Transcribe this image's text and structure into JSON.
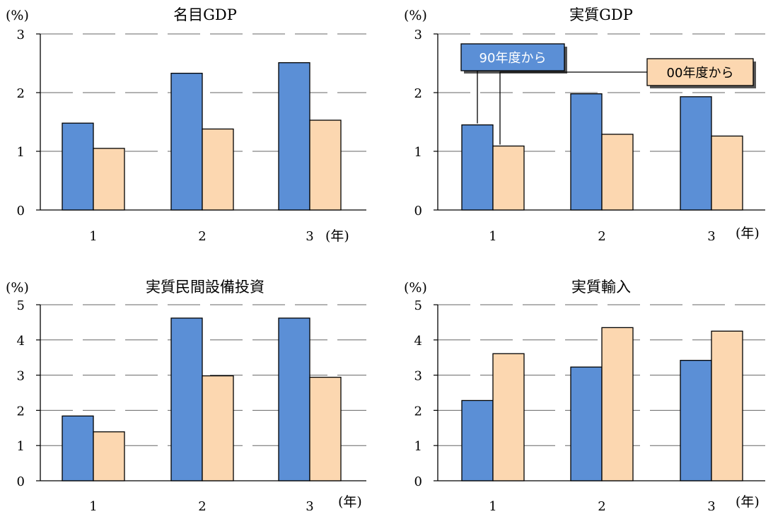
{
  "colors": {
    "series_a": "#5b8fd6",
    "series_b": "#fcd7b0",
    "bar_stroke": "#000000",
    "grid": "#666666"
  },
  "legend": {
    "series_a_label": "90年度から",
    "series_b_label": "00年度から"
  },
  "chart_data": [
    {
      "type": "bar",
      "title": "名目GDP",
      "ylabel": "(%)",
      "xlabel": "(年)",
      "categories": [
        "1",
        "2",
        "3"
      ],
      "ylim": [
        0,
        3
      ],
      "yticks": [
        0,
        1,
        2,
        3
      ],
      "series": [
        {
          "name": "90年度から",
          "values": [
            1.48,
            2.33,
            2.51
          ]
        },
        {
          "name": "00年度から",
          "values": [
            1.05,
            1.38,
            1.53
          ]
        }
      ],
      "legend": false
    },
    {
      "type": "bar",
      "title": "実質GDP",
      "ylabel": "(%)",
      "xlabel": "(年)",
      "categories": [
        "1",
        "2",
        "3"
      ],
      "ylim": [
        0,
        3
      ],
      "yticks": [
        0,
        1,
        2,
        3
      ],
      "series": [
        {
          "name": "90年度から",
          "values": [
            1.45,
            1.98,
            1.93
          ]
        },
        {
          "name": "00年度から",
          "values": [
            1.09,
            1.29,
            1.26
          ]
        }
      ],
      "legend": true
    },
    {
      "type": "bar",
      "title": "実質民間設備投資",
      "ylabel": "(%)",
      "xlabel": "(年)",
      "categories": [
        "1",
        "2",
        "3"
      ],
      "ylim": [
        0,
        5
      ],
      "yticks": [
        0,
        1,
        2,
        3,
        4,
        5
      ],
      "series": [
        {
          "name": "90年度から",
          "values": [
            1.84,
            4.62,
            4.62
          ]
        },
        {
          "name": "00年度から",
          "values": [
            1.39,
            2.98,
            2.94
          ]
        }
      ],
      "legend": false
    },
    {
      "type": "bar",
      "title": "実質輸入",
      "ylabel": "(%)",
      "xlabel": "(年)",
      "categories": [
        "1",
        "2",
        "3"
      ],
      "ylim": [
        0,
        5
      ],
      "yticks": [
        0,
        1,
        2,
        3,
        4,
        5
      ],
      "series": [
        {
          "name": "90年度から",
          "values": [
            2.28,
            3.23,
            3.42
          ]
        },
        {
          "name": "00年度から",
          "values": [
            3.61,
            4.35,
            4.25
          ]
        }
      ],
      "legend": false
    }
  ]
}
